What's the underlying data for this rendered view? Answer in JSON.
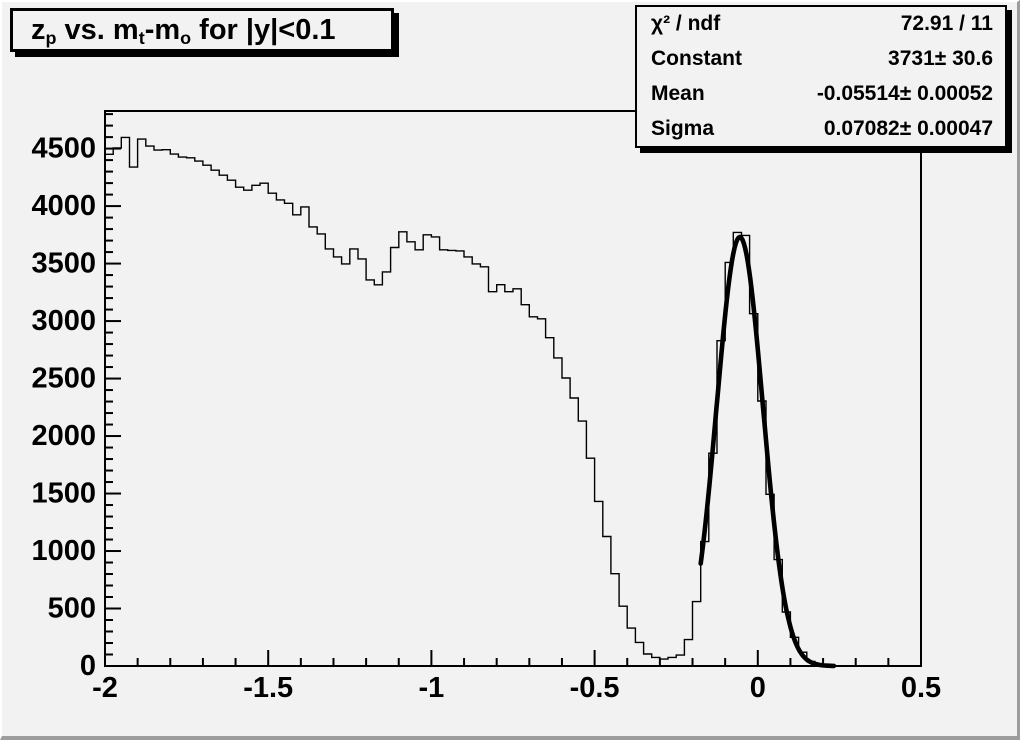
{
  "title": {
    "plain": "z_p vs. m_t-m_o for |y|<0.1",
    "segments": [
      {
        "text": "z",
        "sub": false
      },
      {
        "text": "p",
        "sub": true
      },
      {
        "text": " vs. m",
        "sub": false
      },
      {
        "text": "t",
        "sub": true
      },
      {
        "text": "-m",
        "sub": false
      },
      {
        "text": "o",
        "sub": true
      },
      {
        "text": " for |y|<0.1",
        "sub": false
      }
    ]
  },
  "stats_box": {
    "rows": [
      {
        "label": "χ² / ndf",
        "value": "72.91 / 11"
      },
      {
        "label": "Constant",
        "value": "3731± 30.6"
      },
      {
        "label": "Mean",
        "value": "-0.05514± 0.00052"
      },
      {
        "label": "Sigma",
        "value": "0.07082± 0.00047"
      }
    ]
  },
  "chart_data": {
    "type": "bar",
    "subtype": "step-histogram",
    "title": "z_p vs. m_t-m_o for |y|<0.1",
    "xlabel": "",
    "ylabel": "",
    "xlim": [
      -2,
      0.5
    ],
    "ylim": [
      0,
      4827
    ],
    "grid": false,
    "bin_start": -2,
    "bin_width": 0.025,
    "values": [
      4450,
      4505,
      4597,
      4339,
      4583,
      4522,
      4487,
      4490,
      4452,
      4426,
      4420,
      4391,
      4356,
      4312,
      4269,
      4225,
      4164,
      4138,
      4181,
      4199,
      4112,
      4054,
      4024,
      3924,
      3993,
      3819,
      3758,
      3628,
      3558,
      3497,
      3628,
      3541,
      3358,
      3315,
      3428,
      3640,
      3776,
      3689,
      3620,
      3750,
      3732,
      3620,
      3615,
      3610,
      3558,
      3497,
      3472,
      3255,
      3316,
      3255,
      3281,
      3142,
      3037,
      3020,
      2855,
      2680,
      2505,
      2331,
      2130,
      1807,
      1432,
      1126,
      803,
      520,
      330,
      205,
      104,
      75,
      60,
      75,
      95,
      230,
      560,
      1082,
      1851,
      2829,
      3510,
      3771,
      3745,
      3064,
      2305,
      1493,
      925,
      470,
      250,
      120,
      40,
      12,
      3,
      0,
      0,
      0,
      0,
      0,
      0,
      0,
      0,
      0,
      0,
      0
    ],
    "x_ticks": {
      "major_values": [
        -2,
        -1.5,
        -1,
        -0.5,
        0,
        0.5
      ],
      "major_labels": [
        "-2",
        "-1.5",
        "-1",
        "-0.5",
        "0",
        "0.5"
      ],
      "minor_step": 0.1
    },
    "y_ticks": {
      "major_step": 500,
      "minor_step": 100,
      "major_labels": [
        "0",
        "500",
        "1000",
        "1500",
        "2000",
        "2500",
        "3000",
        "3500",
        "4000",
        "4500"
      ]
    },
    "fit": {
      "type": "gaussian",
      "constant": 3731,
      "mean": -0.05514,
      "sigma": 0.07082,
      "chi2": 72.91,
      "ndf": 11,
      "draw_range": [
        -0.175,
        0.235
      ]
    },
    "colors": {
      "histogram_line": "#000000",
      "fit_line": "#000000",
      "frame_line": "#000000",
      "text": "#000000",
      "canvas_background": "#f2f2f2",
      "box_fill": "#f2f2f2",
      "box_shadow": "#000000"
    },
    "legend_position": "none"
  }
}
